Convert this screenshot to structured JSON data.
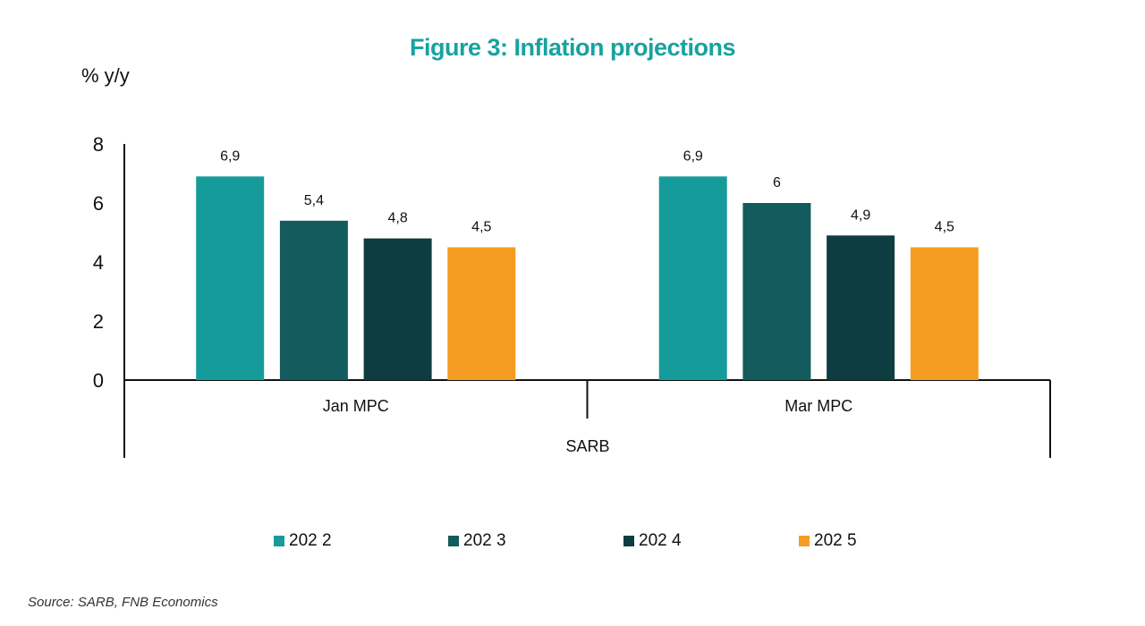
{
  "chart_data": {
    "type": "bar",
    "title": "Figure 3: Inflation projections",
    "ylabel": "% y/y",
    "ylim": [
      0,
      8
    ],
    "yticks": [
      "0",
      "2",
      "4",
      "6",
      "8"
    ],
    "group_label": "SARB",
    "categories": [
      "Jan MPC",
      "Mar MPC"
    ],
    "series": [
      {
        "name": "202 2",
        "color": "#169b9b",
        "values": [
          6.9,
          6.9
        ],
        "labels": [
          "6,9",
          "6,9"
        ]
      },
      {
        "name": "202 3",
        "color": "#135b5d",
        "values": [
          5.4,
          6.0
        ],
        "labels": [
          "5,4",
          "6"
        ]
      },
      {
        "name": "202 4",
        "color": "#0d3d40",
        "values": [
          4.8,
          4.9
        ],
        "labels": [
          "4,8",
          "4,9"
        ]
      },
      {
        "name": "202 5",
        "color": "#f59d22",
        "values": [
          4.5,
          4.5
        ],
        "labels": [
          "4,5",
          "4,5"
        ]
      }
    ],
    "grid": false,
    "legend_position": "bottom"
  },
  "source": "Source: SARB,  FNB Economics"
}
